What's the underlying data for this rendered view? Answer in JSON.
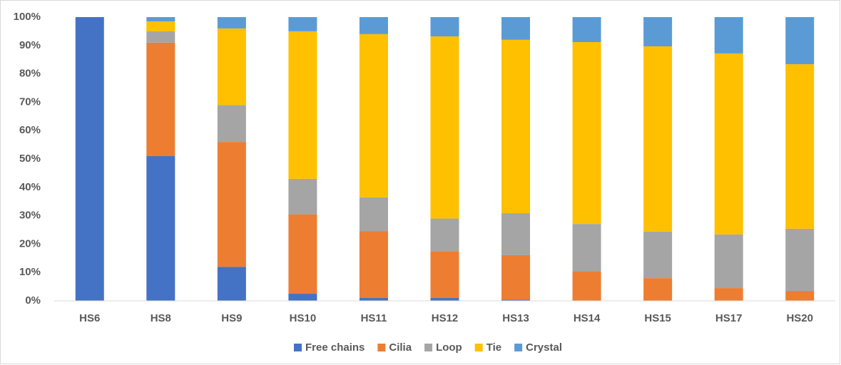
{
  "chart_data": {
    "type": "stacked_bar",
    "categories": [
      "HS6",
      "HS8",
      "HS9",
      "HS10",
      "HS11",
      "HS12",
      "HS13",
      "HS14",
      "HS15",
      "HS17",
      "HS20"
    ],
    "series": [
      {
        "name": "Free chains",
        "color": "#4472c4",
        "values": [
          100,
          51,
          12,
          2.5,
          1,
          1,
          0.4,
          0,
          0,
          0,
          0
        ]
      },
      {
        "name": "Cilia",
        "color": "#ed7d31",
        "values": [
          0,
          40,
          44,
          28,
          23.5,
          16.5,
          15.7,
          10.3,
          8,
          4.5,
          3.5
        ]
      },
      {
        "name": "Loop",
        "color": "#a5a5a5",
        "values": [
          0,
          4,
          13,
          12.5,
          12,
          11.5,
          14.8,
          16.8,
          16.4,
          18.9,
          21.9
        ]
      },
      {
        "name": "Tie",
        "color": "#ffc000",
        "values": [
          0,
          3.5,
          27,
          52,
          57.5,
          64.2,
          61.1,
          64.1,
          65.3,
          63.8,
          58
        ]
      },
      {
        "name": "Crystal",
        "color": "#5b9bd5",
        "values": [
          0,
          1.5,
          4,
          5,
          6,
          6.8,
          8,
          8.8,
          10.3,
          12.8,
          16.6
        ]
      }
    ],
    "ylim": [
      0,
      100
    ],
    "yticks": [
      {
        "value": 0,
        "label": "0%"
      },
      {
        "value": 10,
        "label": "10%"
      },
      {
        "value": 20,
        "label": "20%"
      },
      {
        "value": 30,
        "label": "30%"
      },
      {
        "value": 40,
        "label": "40%"
      },
      {
        "value": 50,
        "label": "50%"
      },
      {
        "value": 60,
        "label": "60%"
      },
      {
        "value": 70,
        "label": "70%"
      },
      {
        "value": 80,
        "label": "80%"
      },
      {
        "value": 90,
        "label": "90%"
      },
      {
        "value": 100,
        "label": "100%"
      }
    ],
    "legend": "bottom"
  }
}
